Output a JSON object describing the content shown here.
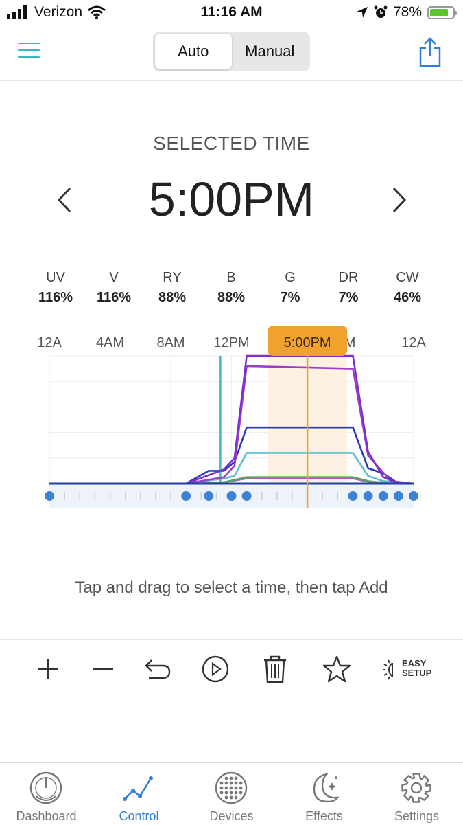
{
  "status": {
    "carrier": "Verizon",
    "time": "11:16 AM",
    "battery": "78%",
    "battery_level": 0.78
  },
  "header": {
    "segment": {
      "auto": "Auto",
      "manual": "Manual",
      "selected": "auto"
    }
  },
  "selected": {
    "label": "SELECTED TIME",
    "time": "5:00PM"
  },
  "channels": [
    {
      "name": "UV",
      "value": "116%"
    },
    {
      "name": "V",
      "value": "116%"
    },
    {
      "name": "RY",
      "value": "88%"
    },
    {
      "name": "B",
      "value": "88%"
    },
    {
      "name": "G",
      "value": "7%"
    },
    {
      "name": "DR",
      "value": "7%"
    },
    {
      "name": "CW",
      "value": "46%"
    }
  ],
  "chart_data": {
    "type": "line",
    "x_ticks": [
      "12A",
      "4AM",
      "8AM",
      "12PM",
      "5:00PM",
      "PM",
      "12A"
    ],
    "selected_label": "5:00PM",
    "selected_hour": 17,
    "now_hour": 11.27,
    "xlim": [
      0,
      24
    ],
    "ylim": [
      0,
      1
    ],
    "grid": true,
    "series": [
      {
        "color": "#7b2fd0",
        "points": [
          [
            0,
            0
          ],
          [
            9,
            0
          ],
          [
            11.5,
            0.11
          ],
          [
            12.2,
            0.2
          ],
          [
            13,
            1.0
          ],
          [
            20,
            1.0
          ],
          [
            21,
            0.25
          ],
          [
            22,
            0.05
          ],
          [
            23,
            0.0
          ],
          [
            24,
            0
          ]
        ]
      },
      {
        "color": "#a23bc9",
        "points": [
          [
            0,
            0
          ],
          [
            9,
            0
          ],
          [
            11.5,
            0.05
          ],
          [
            12.2,
            0.14
          ],
          [
            13,
            0.92
          ],
          [
            20,
            0.9
          ],
          [
            21,
            0.22
          ],
          [
            22.5,
            0.02
          ],
          [
            24,
            0
          ]
        ]
      },
      {
        "color": "#2c39b5",
        "points": [
          [
            0,
            0
          ],
          [
            9,
            0
          ],
          [
            10.5,
            0.1
          ],
          [
            11.5,
            0.1
          ],
          [
            12.2,
            0.17
          ],
          [
            13,
            0.44
          ],
          [
            20,
            0.44
          ],
          [
            21,
            0.12
          ],
          [
            22,
            0.08
          ],
          [
            23,
            0
          ],
          [
            24,
            0
          ]
        ]
      },
      {
        "color": "#5dbfce",
        "points": [
          [
            0,
            0
          ],
          [
            9,
            0
          ],
          [
            11.5,
            0.04
          ],
          [
            12.2,
            0.06
          ],
          [
            13,
            0.24
          ],
          [
            20,
            0.24
          ],
          [
            21,
            0.06
          ],
          [
            22,
            0.02
          ],
          [
            24,
            0
          ]
        ]
      },
      {
        "color": "#5aa357",
        "points": [
          [
            0,
            0
          ],
          [
            9,
            0
          ],
          [
            11.5,
            0.01
          ],
          [
            13,
            0.05
          ],
          [
            20,
            0.05
          ],
          [
            21,
            0.02
          ],
          [
            22,
            0.005
          ],
          [
            24,
            0
          ]
        ]
      },
      {
        "color": "#b05cbb",
        "points": [
          [
            0,
            0
          ],
          [
            9,
            0
          ],
          [
            11.5,
            0.01
          ],
          [
            13,
            0.04
          ],
          [
            20,
            0.04
          ],
          [
            21,
            0.015
          ],
          [
            24,
            0
          ]
        ]
      }
    ],
    "keyframes": [
      0,
      9,
      10.5,
      12,
      13,
      20,
      21,
      22,
      23,
      24
    ]
  },
  "hint": "Tap and drag to select a time, then tap Add",
  "toolbar": {
    "easy_line1": "EASY",
    "easy_line2": "SETUP"
  },
  "tabs": [
    {
      "label": "Dashboard",
      "icon": "gauge-icon"
    },
    {
      "label": "Control",
      "icon": "graph-icon"
    },
    {
      "label": "Devices",
      "icon": "devices-icon"
    },
    {
      "label": "Effects",
      "icon": "moon-stars-icon"
    },
    {
      "label": "Settings",
      "icon": "gear-icon"
    }
  ],
  "colors": {
    "accent": "#2f80d6",
    "teal": "#35b7c8",
    "orange": "#f0a12e"
  }
}
